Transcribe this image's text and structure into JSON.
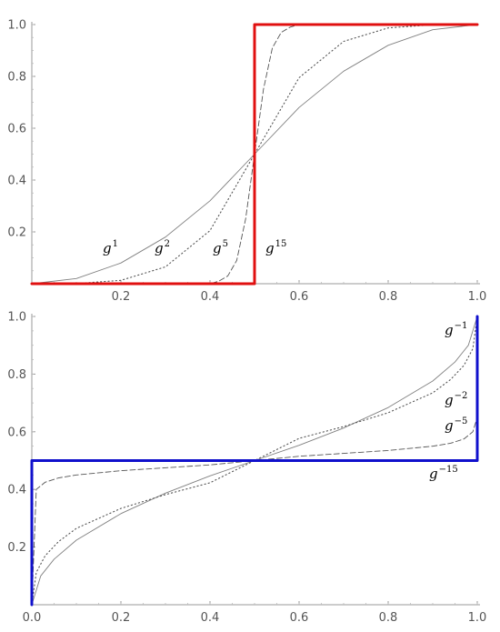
{
  "chart_data": [
    {
      "type": "line",
      "title": "",
      "xlabel": "",
      "ylabel": "",
      "xlim": [
        0,
        1
      ],
      "ylim": [
        0,
        1
      ],
      "x_ticks": [
        0.2,
        0.4,
        0.6,
        0.8,
        1.0
      ],
      "x_tick_labels": [
        "0.2",
        "0.4",
        "0.6",
        "0.8",
        "1.0"
      ],
      "y_ticks": [
        0.2,
        0.4,
        0.6,
        0.8,
        1.0
      ],
      "y_tick_labels": [
        "0.2",
        "0.4",
        "0.6",
        "0.8",
        "1.0"
      ],
      "grid": false,
      "series": [
        {
          "name": "g1",
          "label_base": "g",
          "label_exp": "1",
          "style": "solid",
          "color": "#808080",
          "x": [
            0.0,
            0.1,
            0.2,
            0.3,
            0.4,
            0.5,
            0.6,
            0.7,
            0.8,
            0.9,
            1.0
          ],
          "y": [
            0.0,
            0.02,
            0.08,
            0.18,
            0.32,
            0.5,
            0.68,
            0.82,
            0.92,
            0.98,
            1.0
          ]
        },
        {
          "name": "g2",
          "label_base": "g",
          "label_exp": "2",
          "style": "dotted",
          "color": "#555555",
          "x": [
            0.0,
            0.1,
            0.2,
            0.3,
            0.4,
            0.5,
            0.6,
            0.7,
            0.8,
            0.9,
            1.0
          ],
          "y": [
            0.0,
            0.001,
            0.013,
            0.065,
            0.205,
            0.5,
            0.795,
            0.935,
            0.987,
            0.999,
            1.0
          ]
        },
        {
          "name": "g5",
          "label_base": "g",
          "label_exp": "5",
          "style": "dashed",
          "color": "#555555",
          "x": [
            0.0,
            0.4,
            0.42,
            0.44,
            0.46,
            0.48,
            0.5,
            0.52,
            0.54,
            0.56,
            0.58,
            0.6,
            1.0
          ],
          "y": [
            0.0,
            0.0,
            0.01,
            0.03,
            0.09,
            0.25,
            0.5,
            0.75,
            0.91,
            0.97,
            0.99,
            1.0,
            1.0
          ]
        },
        {
          "name": "g15",
          "label_base": "g",
          "label_exp": "15",
          "style": "solid-thick",
          "color": "#e01010",
          "x": [
            0.0,
            0.5,
            0.5,
            1.0
          ],
          "y": [
            0.0,
            0.0,
            1.0,
            1.0
          ]
        }
      ]
    },
    {
      "type": "line",
      "title": "",
      "xlabel": "",
      "ylabel": "",
      "xlim": [
        0,
        1
      ],
      "ylim": [
        0,
        1
      ],
      "x_ticks": [
        0.0,
        0.2,
        0.4,
        0.6,
        0.8,
        1.0
      ],
      "x_tick_labels": [
        "0.0",
        "0.2",
        "0.4",
        "0.6",
        "0.8",
        "1.0"
      ],
      "y_ticks": [
        0.2,
        0.4,
        0.6,
        0.8,
        1.0
      ],
      "y_tick_labels": [
        "0.2",
        "0.4",
        "0.6",
        "0.8",
        "1.0"
      ],
      "grid": false,
      "series": [
        {
          "name": "g-1",
          "label_base": "g",
          "label_exp": "−1",
          "style": "solid",
          "color": "#808080",
          "x": [
            0.0,
            0.02,
            0.05,
            0.1,
            0.2,
            0.3,
            0.4,
            0.5,
            0.6,
            0.7,
            0.8,
            0.9,
            0.95,
            0.98,
            1.0
          ],
          "y": [
            0.0,
            0.1,
            0.158,
            0.224,
            0.316,
            0.387,
            0.447,
            0.5,
            0.553,
            0.613,
            0.684,
            0.776,
            0.842,
            0.9,
            1.0
          ]
        },
        {
          "name": "g-2",
          "label_base": "g",
          "label_exp": "−2",
          "style": "dotted",
          "color": "#555555",
          "x": [
            0.0,
            0.01,
            0.03,
            0.06,
            0.1,
            0.2,
            0.3,
            0.4,
            0.5,
            0.6,
            0.7,
            0.8,
            0.9,
            0.94,
            0.97,
            0.99,
            1.0
          ],
          "y": [
            0.0,
            0.112,
            0.17,
            0.219,
            0.265,
            0.334,
            0.382,
            0.423,
            0.5,
            0.577,
            0.618,
            0.666,
            0.735,
            0.781,
            0.83,
            0.888,
            1.0
          ]
        },
        {
          "name": "g-5",
          "label_base": "g",
          "label_exp": "−5",
          "style": "dashed",
          "color": "#555555",
          "x": [
            0.0,
            0.01,
            0.03,
            0.06,
            0.1,
            0.2,
            0.3,
            0.4,
            0.5,
            0.6,
            0.7,
            0.8,
            0.9,
            0.94,
            0.97,
            0.99,
            1.0
          ],
          "y": [
            0.0,
            0.4,
            0.425,
            0.44,
            0.45,
            0.465,
            0.475,
            0.485,
            0.5,
            0.515,
            0.525,
            0.535,
            0.55,
            0.56,
            0.575,
            0.6,
            0.65
          ]
        },
        {
          "name": "g-15",
          "label_base": "g",
          "label_exp": "−15",
          "style": "solid-thick",
          "color": "#1010cc",
          "x": [
            0.0,
            0.0,
            0.0,
            1.0,
            1.0,
            1.0
          ],
          "y": [
            0.0,
            0.5,
            0.5,
            0.5,
            0.5,
            1.0
          ]
        }
      ]
    }
  ]
}
